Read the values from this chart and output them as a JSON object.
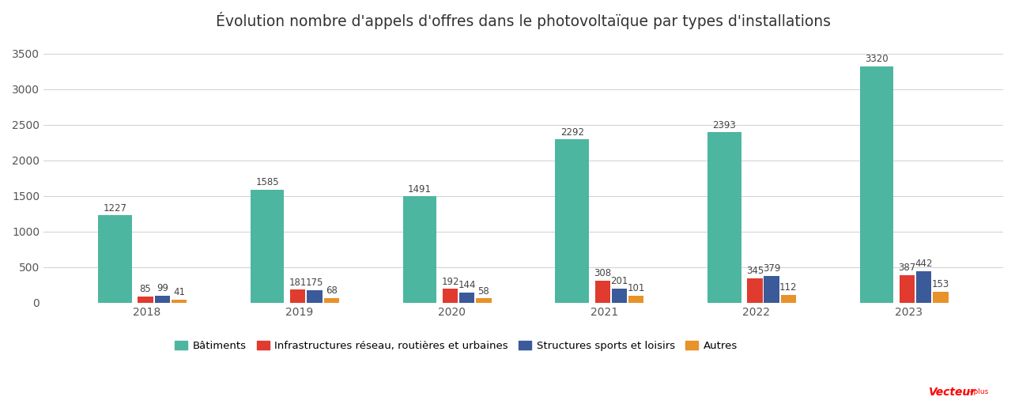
{
  "title": "Évolution nombre d'appels d'offres dans le photovoltaïque par types d'installations",
  "years": [
    2018,
    2019,
    2020,
    2021,
    2022,
    2023
  ],
  "series": {
    "Bâtiments": [
      1227,
      1585,
      1491,
      2292,
      2393,
      3320
    ],
    "Infrastructures réseau, routières et urbaines": [
      85,
      181,
      192,
      308,
      345,
      387
    ],
    "Structures sports et loisirs": [
      99,
      175,
      144,
      201,
      379,
      442
    ],
    "Autres": [
      41,
      68,
      58,
      101,
      112,
      153
    ]
  },
  "colors": {
    "Bâtiments": "#4db6a0",
    "Infrastructures réseau, routières et urbaines": "#e03b2e",
    "Structures sports et loisirs": "#3b5a9a",
    "Autres": "#e8922a"
  },
  "ylim": [
    0,
    3700
  ],
  "yticks": [
    0,
    500,
    1000,
    1500,
    2000,
    2500,
    3000,
    3500
  ],
  "background_color": "#ffffff",
  "grid_color": "#d0d0d0",
  "batiment_bar_width": 0.22,
  "small_bar_width": 0.1,
  "label_fontsize": 8.5,
  "title_fontsize": 13.5,
  "tick_fontsize": 10,
  "legend_fontsize": 9.5
}
